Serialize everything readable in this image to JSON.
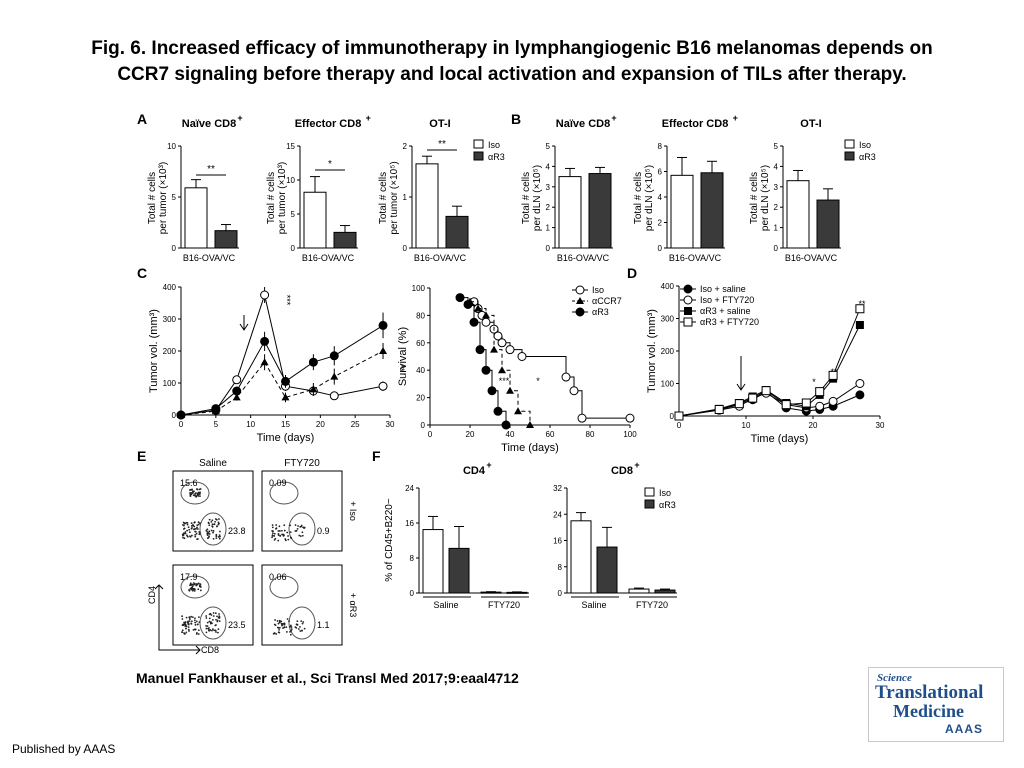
{
  "title": {
    "line1": "Fig. 6. Increased efficacy of immunotherapy in lymphangiogenic B16 melanomas depends on",
    "line2": "CCR7 signaling before therapy and local activation and expansion of TILs after therapy."
  },
  "citation": "Manuel Fankhauser et al., Sci Transl Med 2017;9:eaal4712",
  "published": "Published by AAAS",
  "logo": {
    "science": "Science",
    "translational": "Translational",
    "medicine": "Medicine",
    "aaas": "AAAS"
  },
  "panel_letters": [
    "A",
    "B",
    "C",
    "D",
    "E",
    "F"
  ],
  "legend_iso_r3": [
    "Iso",
    "αR3"
  ],
  "chart_data": [
    {
      "panel": "A",
      "type": "bar",
      "title": "Naïve CD8+",
      "ylabel": "Total # cells per tumor (×10³)",
      "xlabel": "B16-OVA/VC",
      "yticks": [
        0,
        5,
        10
      ],
      "ylim": [
        0,
        10
      ],
      "series": [
        {
          "name": "Iso",
          "values": [
            5.9
          ],
          "err": [
            0.8
          ]
        },
        {
          "name": "αR3",
          "values": [
            1.7
          ],
          "err": [
            0.6
          ]
        }
      ],
      "significance": "**"
    },
    {
      "panel": "A",
      "type": "bar",
      "title": "Effector CD8+",
      "ylabel": "Total # cells per tumor (×10³)",
      "xlabel": "B16-OVA/VC",
      "yticks": [
        0,
        5,
        10,
        15
      ],
      "ylim": [
        0,
        15
      ],
      "series": [
        {
          "name": "Iso",
          "values": [
            8.2
          ],
          "err": [
            2.3
          ]
        },
        {
          "name": "αR3",
          "values": [
            2.3
          ],
          "err": [
            1.0
          ]
        }
      ],
      "significance": "*"
    },
    {
      "panel": "A",
      "type": "bar",
      "title": "OT-I",
      "ylabel": "Total # cells per tumor (×10⁵)",
      "xlabel": "B16-OVA/VC",
      "yticks": [
        0,
        1,
        2
      ],
      "ylim": [
        0,
        2
      ],
      "series": [
        {
          "name": "Iso",
          "values": [
            1.65
          ],
          "err": [
            0.15
          ]
        },
        {
          "name": "αR3",
          "values": [
            0.62
          ],
          "err": [
            0.2
          ]
        }
      ],
      "significance": "**"
    },
    {
      "panel": "B",
      "type": "bar",
      "title": "Naïve CD8+",
      "ylabel": "Total # cells per dLN (×10⁵)",
      "xlabel": "B16-OVA/VC",
      "yticks": [
        0,
        1,
        2,
        3,
        4,
        5
      ],
      "ylim": [
        0,
        5
      ],
      "series": [
        {
          "name": "Iso",
          "values": [
            3.5
          ],
          "err": [
            0.4
          ]
        },
        {
          "name": "αR3",
          "values": [
            3.65
          ],
          "err": [
            0.3
          ]
        }
      ]
    },
    {
      "panel": "B",
      "type": "bar",
      "title": "Effector CD8+",
      "ylabel": "Total # cells per dLN (×10⁵)",
      "xlabel": "B16-OVA/VC",
      "yticks": [
        0,
        2,
        4,
        6,
        8
      ],
      "ylim": [
        0,
        8
      ],
      "series": [
        {
          "name": "Iso",
          "values": [
            5.7
          ],
          "err": [
            1.4
          ]
        },
        {
          "name": "αR3",
          "values": [
            5.9
          ],
          "err": [
            0.9
          ]
        }
      ]
    },
    {
      "panel": "B",
      "type": "bar",
      "title": "OT-I",
      "ylabel": "Total # cells per dLN (×10⁵)",
      "xlabel": "B16-OVA/VC",
      "yticks": [
        0,
        1,
        2,
        3,
        4,
        5
      ],
      "ylim": [
        0,
        5
      ],
      "series": [
        {
          "name": "Iso",
          "values": [
            3.3
          ],
          "err": [
            0.5
          ]
        },
        {
          "name": "αR3",
          "values": [
            2.35
          ],
          "err": [
            0.55
          ]
        }
      ]
    },
    {
      "panel": "C",
      "type": "line",
      "ylabel": "Tumor vol. (mm³)",
      "xlabel": "Time (days)",
      "xticks": [
        0,
        5,
        10,
        15,
        20,
        25,
        30
      ],
      "yticks": [
        0,
        100,
        200,
        300,
        400
      ],
      "xlim": [
        0,
        30
      ],
      "ylim": [
        0,
        400
      ],
      "x": [
        0,
        5,
        8,
        12,
        15,
        19,
        22,
        29
      ],
      "series": [
        {
          "name": "Iso",
          "marker": "open-circle",
          "values": [
            0,
            15,
            110,
            375,
            90,
            75,
            60,
            90
          ],
          "err": [
            2,
            8,
            12,
            25,
            15,
            15,
            12,
            15
          ]
        },
        {
          "name": "αCCR7",
          "marker": "triangle",
          "values": [
            0,
            12,
            55,
            165,
            55,
            80,
            120,
            200
          ],
          "err": [
            2,
            6,
            10,
            25,
            15,
            20,
            25,
            25
          ]
        },
        {
          "name": "αR3",
          "marker": "filled-circle",
          "values": [
            0,
            20,
            75,
            230,
            105,
            165,
            185,
            280
          ],
          "err": [
            2,
            8,
            12,
            30,
            20,
            25,
            30,
            40
          ]
        }
      ],
      "significance": [
        "***",
        "**"
      ]
    },
    {
      "panel": "C",
      "type": "line",
      "ylabel": "Survival (%)",
      "xlabel": "Time (days)",
      "xticks": [
        0,
        20,
        40,
        60,
        80,
        100
      ],
      "yticks": [
        0,
        20,
        40,
        60,
        80,
        100
      ],
      "xlim": [
        0,
        100
      ],
      "ylim": [
        0,
        100
      ],
      "series": [
        {
          "name": "Iso",
          "marker": "open-circle",
          "x": [
            22,
            24,
            26,
            28,
            32,
            34,
            36,
            40,
            46,
            68,
            72,
            76,
            100
          ],
          "values": [
            90,
            85,
            80,
            75,
            70,
            65,
            60,
            55,
            50,
            35,
            25,
            5,
            5
          ]
        },
        {
          "name": "αCCR7",
          "marker": "triangle",
          "x": [
            20,
            24,
            28,
            32,
            36,
            40,
            44,
            50
          ],
          "values": [
            90,
            85,
            80,
            55,
            40,
            25,
            10,
            0
          ]
        },
        {
          "name": "αR3",
          "marker": "filled-circle",
          "x": [
            15,
            19,
            22,
            25,
            28,
            31,
            34,
            38
          ],
          "values": [
            93,
            88,
            75,
            55,
            40,
            25,
            10,
            0
          ]
        }
      ],
      "significance": [
        "***",
        "*"
      ]
    },
    {
      "panel": "D",
      "type": "line",
      "ylabel": "Tumor vol. (mm³)",
      "xlabel": "Time (days)",
      "xticks": [
        0,
        10,
        20,
        30
      ],
      "yticks": [
        0,
        100,
        200,
        300,
        400
      ],
      "xlim": [
        0,
        30
      ],
      "ylim": [
        0,
        400
      ],
      "x": [
        0,
        6,
        9,
        11,
        13,
        16,
        19,
        21,
        23,
        27
      ],
      "series": [
        {
          "name": "Iso + saline",
          "marker": "filled-circle",
          "values": [
            0,
            20,
            35,
            50,
            75,
            25,
            15,
            20,
            30,
            65
          ]
        },
        {
          "name": "Iso + FTY720",
          "marker": "open-circle",
          "values": [
            0,
            18,
            30,
            55,
            70,
            35,
            25,
            30,
            45,
            100
          ]
        },
        {
          "name": "αR3 + saline",
          "marker": "filled-square",
          "values": [
            0,
            22,
            40,
            60,
            80,
            40,
            30,
            65,
            115,
            280
          ]
        },
        {
          "name": "αR3 + FTY720",
          "marker": "open-square",
          "values": [
            0,
            20,
            38,
            55,
            78,
            35,
            40,
            75,
            125,
            330
          ]
        }
      ],
      "significance": [
        "*",
        "**",
        "**"
      ]
    },
    {
      "panel": "F",
      "type": "bar",
      "title": "CD4+",
      "ylabel": "% of CD45+B220−",
      "categories": [
        "Saline",
        "FTY720"
      ],
      "yticks": [
        0,
        8,
        16,
        24
      ],
      "ylim": [
        0,
        24
      ],
      "series": [
        {
          "name": "Iso",
          "values": [
            14.5,
            0.2
          ],
          "err": [
            3.0,
            0.1
          ]
        },
        {
          "name": "αR3",
          "values": [
            10.2,
            0.15
          ],
          "err": [
            5.0,
            0.1
          ]
        }
      ]
    },
    {
      "panel": "F",
      "type": "bar",
      "title": "CD8+",
      "ylabel": "% of CD45+B220−",
      "categories": [
        "Saline",
        "FTY720"
      ],
      "yticks": [
        0,
        8,
        16,
        24,
        32
      ],
      "ylim": [
        0,
        32
      ],
      "series": [
        {
          "name": "Iso",
          "values": [
            22,
            1.2
          ],
          "err": [
            2.5,
            0.3
          ]
        },
        {
          "name": "αR3",
          "values": [
            14,
            0.9
          ],
          "err": [
            6.0,
            0.3
          ]
        }
      ]
    }
  ],
  "flow_cytometry": {
    "panel": "E",
    "columns": [
      "Saline",
      "FTY720"
    ],
    "rows": [
      "+ Iso",
      "+ αR3"
    ],
    "xlabel": "CD8",
    "ylabel": "CD4",
    "gates": [
      {
        "upper": "15.6",
        "lower": "23.8"
      },
      {
        "upper": "0.09",
        "lower": "0.9"
      },
      {
        "upper": "17.9",
        "lower": "23.5"
      },
      {
        "upper": "0.06",
        "lower": "1.1"
      }
    ]
  }
}
